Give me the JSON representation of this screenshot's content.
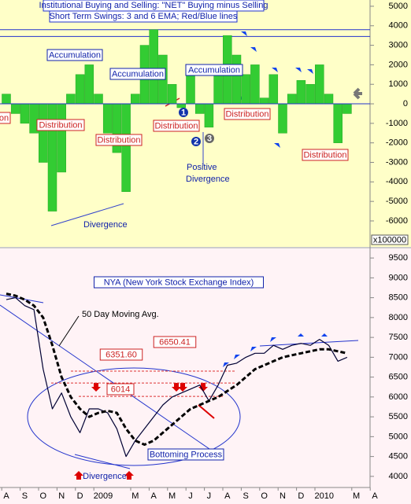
{
  "chart_data": [
    {
      "type": "bar",
      "title": "Institutional Buying and Selling: \"NET\" Buying minus Selling",
      "subtitle": "Short Term Swings: 3 and 6 EMA; Red/Blue lines",
      "values": [
        500,
        -500,
        -1000,
        -1500,
        -3000,
        -5500,
        -3500,
        500,
        1500,
        2000,
        500,
        -1500,
        -2500,
        -4500,
        500,
        3000,
        3800,
        2500,
        1000,
        -200,
        1500,
        -500,
        -1200,
        1500,
        3500,
        2500,
        1500,
        2000,
        300,
        1500,
        -1500,
        500,
        1200,
        1000,
        2000,
        500,
        -2000,
        -500,
        null,
        null,
        null,
        null
      ],
      "color": "#33cc33",
      "levels": [
        3800,
        3450
      ],
      "ylim": [
        -7250,
        5320
      ],
      "yticks": [
        5000,
        4000,
        3000,
        2000,
        1000,
        0,
        -1000,
        -2000,
        -3000,
        -4000,
        -5000,
        -6000
      ],
      "annotations": [
        "Accumulation",
        "Accumulation",
        "Accumulation",
        "on",
        "Distribution",
        "Distribution",
        "Distribution",
        "Distribution",
        "Distribution",
        "Positive",
        "Divergence",
        "Divergence",
        "x100000",
        "1",
        "2",
        "3"
      ]
    },
    {
      "type": "line",
      "title": "NYA (New York Stock Exchange Index)",
      "categories": [
        "A",
        null,
        "S",
        null,
        "O",
        null,
        "N",
        null,
        "D",
        null,
        "2009",
        null,
        null,
        null,
        "M",
        null,
        "A",
        null,
        "M",
        null,
        "J",
        null,
        "J",
        null,
        "A",
        null,
        "S",
        null,
        "O",
        null,
        "N",
        null,
        "D",
        null,
        "2010",
        null,
        null,
        null,
        "M",
        null,
        "A",
        null
      ],
      "series": [
        {
          "color": "#000033",
          "values": [
            8450,
            8500,
            8300,
            8200,
            6700,
            5700,
            6100,
            5500,
            5100,
            5700,
            5700,
            5600,
            5200,
            4500,
            4900,
            5200,
            5500,
            5800,
            6000,
            6100,
            6200,
            6300,
            5900,
            6300,
            6800,
            6850,
            7000,
            7100,
            7100,
            7300,
            7200,
            7300,
            7350,
            7300,
            7450,
            7300,
            6900,
            7000,
            null,
            null,
            null,
            null
          ]
        },
        {
          "color": "#000000",
          "dash": true,
          "values": [
            8600,
            8550,
            8450,
            8300,
            8000,
            7300,
            6500,
            6000,
            5700,
            5500,
            5600,
            5650,
            5600,
            5200,
            4900,
            4800,
            4900,
            5100,
            5300,
            5500,
            5700,
            5800,
            5900,
            6000,
            6150,
            6300,
            6500,
            6700,
            6800,
            6900,
            7000,
            7050,
            7100,
            7150,
            7200,
            7200,
            7150,
            7100,
            null,
            null,
            null,
            null
          ]
        }
      ],
      "levels": [
        6650.41,
        6351.6,
        6014
      ],
      "value_labels": [
        "6650.41",
        "6351.60",
        "6014"
      ],
      "ylim": [
        3720,
        9740
      ],
      "yticks": [
        9500,
        9000,
        8500,
        8000,
        7500,
        7000,
        6500,
        6000,
        5500,
        5000,
        4500,
        4000
      ],
      "annotations": [
        "50 Day Moving Avg.",
        "Bottoming Process",
        "Divergence"
      ]
    }
  ]
}
